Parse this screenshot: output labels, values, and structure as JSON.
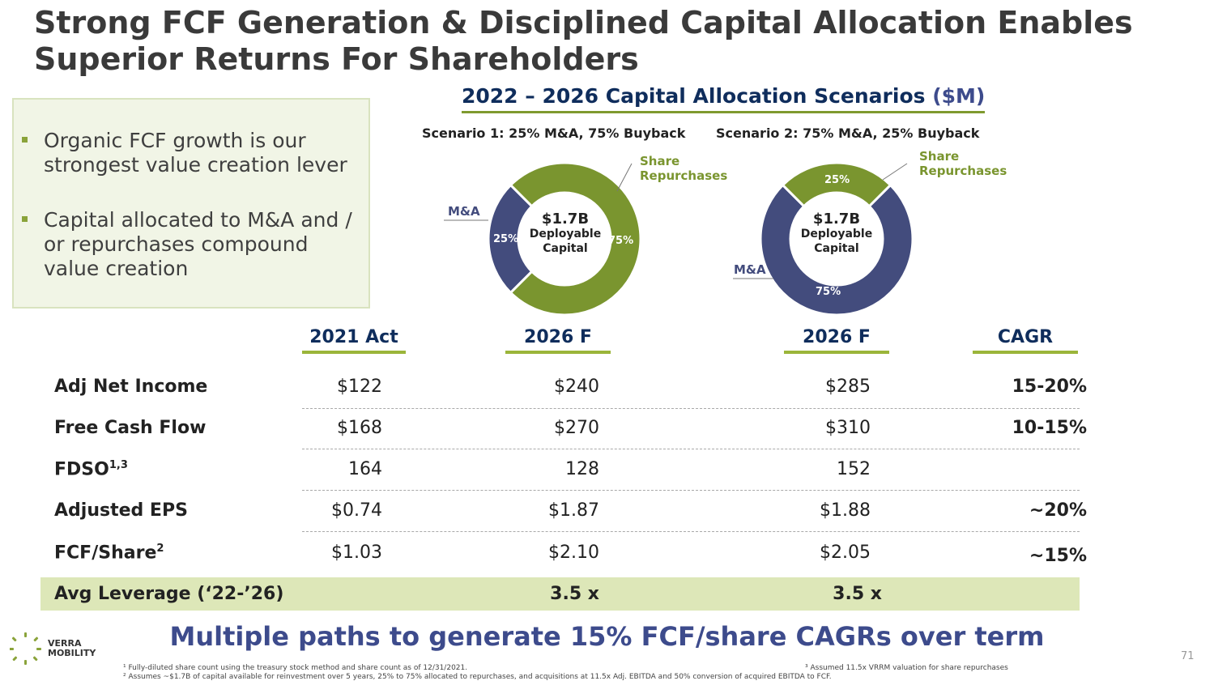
{
  "title": "Strong FCF Generation & Disciplined Capital Allocation Enables Superior Returns For Shareholders",
  "bullets": [
    "Organic FCF growth is our strongest value creation lever",
    "Capital allocated to M&A and / or repurchases compound value creation"
  ],
  "scenarios_heading": "2022 – 2026 Capital Allocation Scenarios",
  "scenarios_unit": "($M)",
  "scenario1": {
    "label": "Scenario 1:  25% M&A, 75% Buyback",
    "ma_label": "M&A",
    "share_label_1": "Share",
    "share_label_2": "Repurchases",
    "ma_pct": "25%",
    "share_pct": "75%",
    "center_1": "$1.7B",
    "center_2": "Deployable",
    "center_3": "Capital"
  },
  "scenario2": {
    "label": "Scenario 2:  75% M&A, 25% Buyback",
    "ma_label": "M&A",
    "share_label_1": "Share",
    "share_label_2": "Repurchases",
    "ma_pct": "75%",
    "share_pct": "25%",
    "center_1": "$1.7B",
    "center_2": "Deployable",
    "center_3": "Capital"
  },
  "colors": {
    "ma": "#434c7d",
    "share": "#7a952f",
    "title": "#3a3a3a",
    "navy": "#0f2d5c",
    "accent_bar": "#9bb53a",
    "leverage_bg": "#dde7b8"
  },
  "chart_data": [
    {
      "type": "pie",
      "title": "Scenario 1:  25% M&A, 75% Buyback",
      "categories": [
        "M&A",
        "Share Repurchases"
      ],
      "values": [
        25,
        75
      ],
      "center_text": "$1.7B Deployable Capital"
    },
    {
      "type": "pie",
      "title": "Scenario 2:  75% M&A, 25% Buyback",
      "categories": [
        "M&A",
        "Share Repurchases"
      ],
      "values": [
        75,
        25
      ],
      "center_text": "$1.7B Deployable Capital"
    },
    {
      "type": "table",
      "columns": [
        "2021 Act",
        "2026 F",
        "2026 F",
        "CAGR"
      ],
      "rows": [
        {
          "label": "Adj Net Income",
          "values": [
            "$122",
            "$240",
            "$285",
            "15-20%"
          ]
        },
        {
          "label": "Free Cash Flow",
          "values": [
            "$168",
            "$270",
            "$310",
            "10-15%"
          ]
        },
        {
          "label": "FDSO",
          "sup": "1,3",
          "values": [
            "164",
            "128",
            "152",
            ""
          ]
        },
        {
          "label": "Adjusted EPS",
          "values": [
            "$0.74",
            "$1.87",
            "$1.88",
            "~20%"
          ]
        },
        {
          "label": "FCF/Share",
          "sup": "2",
          "values": [
            "$1.03",
            "$2.10",
            "$2.05",
            "~15%"
          ]
        },
        {
          "label": "Avg Leverage (‘22-’26)",
          "values": [
            "",
            "3.5 x",
            "3.5 x",
            ""
          ]
        }
      ]
    }
  ],
  "bottom_line": "Multiple paths to generate 15% FCF/share CAGRs over term",
  "logo": {
    "line1": "VERRA",
    "line2": "MOBILITY"
  },
  "footnotes": {
    "f1": "¹ Fully-diluted share count using the treasury stock method and share count as of 12/31/2021.",
    "f2": "² Assumes ~$1.7B of capital available for reinvestment over 5 years, 25% to 75% allocated to repurchases, and acquisitions at 11.5x Adj. EBITDA and 50% conversion of acquired EBITDA to FCF.",
    "f3": "³ Assumed 11.5x VRRM valuation for share repurchases"
  },
  "page_number": "71"
}
